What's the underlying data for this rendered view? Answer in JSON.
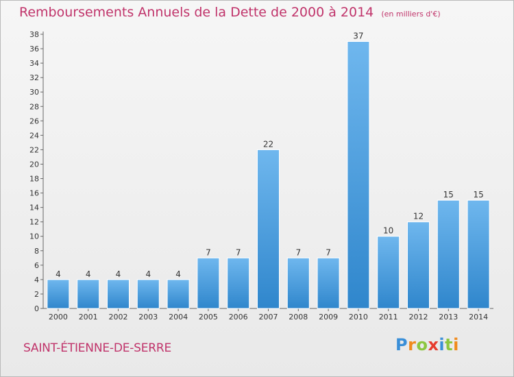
{
  "chart_data": {
    "type": "bar",
    "title": "Remboursements Annuels de la Dette de 2000 à 2014",
    "subtitle": "(en milliers d'€)",
    "categories": [
      "2000",
      "2001",
      "2002",
      "2003",
      "2004",
      "2005",
      "2006",
      "2007",
      "2008",
      "2009",
      "2010",
      "2011",
      "2012",
      "2013",
      "2014"
    ],
    "values": [
      4,
      4,
      4,
      4,
      4,
      7,
      7,
      22,
      7,
      7,
      37,
      10,
      12,
      15,
      15
    ],
    "data_labels": [
      "4",
      "4",
      "4",
      "4",
      "4",
      "7",
      "7",
      "22",
      "7",
      "7",
      "37",
      "10",
      "12",
      "15",
      "15"
    ],
    "xlabel": "",
    "ylabel": "",
    "ylim": [
      0,
      38
    ],
    "yticks": [
      "0",
      "2",
      "4",
      "6",
      "8",
      "10",
      "12",
      "14",
      "16",
      "18",
      "20",
      "22",
      "24",
      "26",
      "28",
      "30",
      "32",
      "34",
      "36",
      "38"
    ],
    "grid": false,
    "legend": "none",
    "colors": {
      "bar_light": "#6fb7ee",
      "bar_dark": "#2f86cc",
      "text": "#333333",
      "title": "#c0336a"
    }
  },
  "location": "SAINT-ÉTIENNE-DE-SERRE",
  "logo": {
    "letters": [
      "P",
      "r",
      "o",
      "x",
      "i",
      "t",
      "i"
    ],
    "colors": [
      "#3a8fd8",
      "#f08a1c",
      "#8cc63f",
      "#e63b2e",
      "#3a8fd8",
      "#8cc63f",
      "#f08a1c"
    ]
  }
}
